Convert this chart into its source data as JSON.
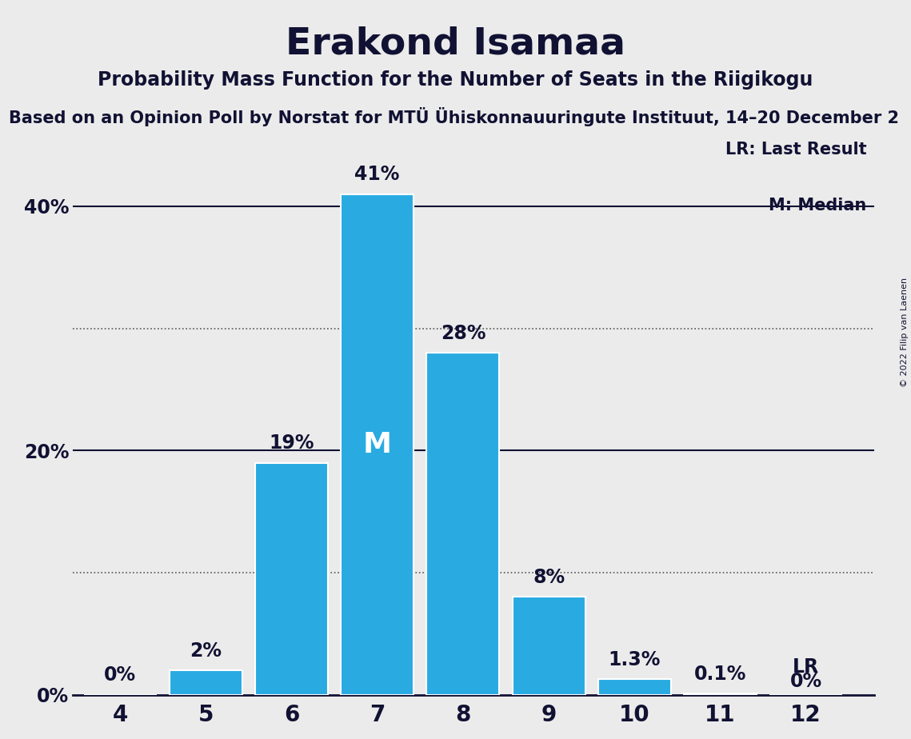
{
  "title": "Erakond Isamaa",
  "subtitle": "Probability Mass Function for the Number of Seats in the Riigikogu",
  "sub_subtitle": "Based on an Opinion Poll by Norstat for MTÜ Ühiskonnauuringute Instituut, 14–20 December 2",
  "copyright": "© 2022 Filip van Laenen",
  "categories": [
    4,
    5,
    6,
    7,
    8,
    9,
    10,
    11,
    12
  ],
  "values": [
    0.0,
    2.0,
    19.0,
    41.0,
    28.0,
    8.0,
    1.3,
    0.1,
    0.0
  ],
  "bar_color": "#29ABE2",
  "bar_edge_color": "#ffffff",
  "background_color": "#EBEBEB",
  "median_bar": 7,
  "last_result_bar": 12,
  "labels": [
    "0%",
    "2%",
    "19%",
    "41%",
    "28%",
    "8%",
    "1.3%",
    "0.1%",
    "0%"
  ],
  "median_label": "M",
  "lr_label": "LR",
  "legend_lr": "LR: Last Result",
  "legend_m": "M: Median",
  "ylim": [
    0,
    46
  ],
  "solid_lines": [
    20,
    40
  ],
  "dotted_lines": [
    10,
    30
  ],
  "ytick_positions": [
    0,
    20,
    40
  ],
  "ytick_labels": [
    "0%",
    "20%",
    "40%"
  ],
  "title_fontsize": 34,
  "subtitle_fontsize": 17,
  "sub_subtitle_fontsize": 15,
  "bar_label_fontsize": 17,
  "ytick_fontsize": 17,
  "xtick_fontsize": 20,
  "legend_fontsize": 15
}
